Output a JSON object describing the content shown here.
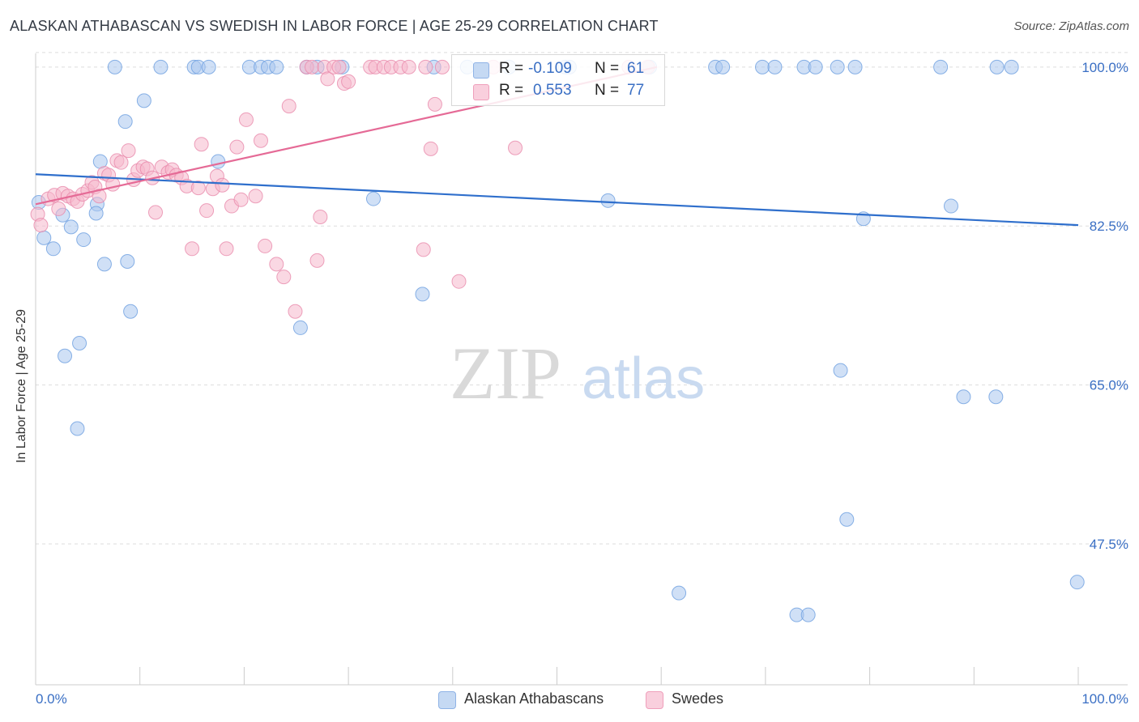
{
  "header": {
    "title": "ALASKAN ATHABASCAN VS SWEDISH IN LABOR FORCE | AGE 25-29 CORRELATION CHART",
    "source": "Source: ZipAtlas.com"
  },
  "watermark": {
    "zip": "ZIP",
    "atlas": "atlas"
  },
  "stats_legend": {
    "rows": [
      {
        "r_label": "R =",
        "r_value": "-0.109",
        "n_label": "N =",
        "n_value": "61",
        "color": "#a9c7ee"
      },
      {
        "r_label": "R =",
        "r_value": "0.553",
        "n_label": "N =",
        "n_value": "77",
        "color": "#f5b8cc"
      }
    ]
  },
  "bottom_legend": [
    {
      "label": "Alaskan Athabascans",
      "color": "#a9c7ee"
    },
    {
      "label": "Swedes",
      "color": "#f5b8cc"
    }
  ],
  "chart_data": {
    "type": "scatter",
    "title": "ALASKAN ATHABASCAN VS SWEDISH IN LABOR FORCE | AGE 25-29 CORRELATION CHART",
    "xlabel": "",
    "ylabel": "In Labor Force | Age 25-29",
    "xlim": [
      0,
      100
    ],
    "ylim": [
      32,
      101.5
    ],
    "x_tick_labels": [
      "0.0%",
      "100.0%"
    ],
    "y_ticks": [
      47.5,
      65.0,
      82.5,
      100.0
    ],
    "y_tick_labels": [
      "47.5%",
      "65.0%",
      "82.5%",
      "100.0%"
    ],
    "grid": "horizontal dashed",
    "legend": "bottom",
    "series": [
      {
        "name": "Alaskan Athabascans",
        "color": "#6d9fe0",
        "fill": "#a9c7ee",
        "trend": {
          "x": [
            0,
            100
          ],
          "y": [
            88.2,
            82.6
          ]
        },
        "points": [
          [
            0.3,
            85.1
          ],
          [
            0.8,
            81.2
          ],
          [
            1.7,
            80.0
          ],
          [
            2.6,
            83.7
          ],
          [
            3.4,
            82.4
          ],
          [
            2.8,
            68.2
          ],
          [
            4.2,
            69.6
          ],
          [
            4.0,
            60.2
          ],
          [
            4.6,
            81.0
          ],
          [
            5.9,
            84.9
          ],
          [
            5.8,
            83.9
          ],
          [
            6.2,
            89.6
          ],
          [
            6.6,
            78.3
          ],
          [
            8.6,
            94.0
          ],
          [
            8.8,
            78.6
          ],
          [
            9.1,
            73.1
          ],
          [
            10.4,
            96.3
          ],
          [
            7.6,
            100.0
          ],
          [
            12.0,
            100.0
          ],
          [
            15.2,
            100.0
          ],
          [
            15.6,
            100.0
          ],
          [
            16.6,
            100.0
          ],
          [
            17.5,
            89.6
          ],
          [
            20.5,
            100.0
          ],
          [
            21.6,
            100.0
          ],
          [
            22.3,
            100.0
          ],
          [
            23.1,
            100.0
          ],
          [
            25.4,
            71.3
          ],
          [
            26.0,
            100.0
          ],
          [
            27.0,
            100.0
          ],
          [
            29.4,
            100.0
          ],
          [
            32.4,
            85.5
          ],
          [
            37.1,
            75.0
          ],
          [
            38.2,
            100.0
          ],
          [
            41.4,
            100.0
          ],
          [
            45.4,
            100.0
          ],
          [
            50.8,
            100.0
          ],
          [
            51.2,
            100.0
          ],
          [
            54.9,
            85.3
          ],
          [
            58.9,
            100.0
          ],
          [
            61.7,
            42.1
          ],
          [
            65.2,
            100.0
          ],
          [
            65.9,
            100.0
          ],
          [
            69.7,
            100.0
          ],
          [
            70.9,
            100.0
          ],
          [
            73.0,
            39.7
          ],
          [
            74.1,
            39.7
          ],
          [
            73.7,
            100.0
          ],
          [
            74.8,
            100.0
          ],
          [
            76.9,
            100.0
          ],
          [
            77.2,
            66.6
          ],
          [
            77.8,
            50.2
          ],
          [
            78.6,
            100.0
          ],
          [
            79.4,
            83.3
          ],
          [
            86.8,
            100.0
          ],
          [
            87.8,
            84.7
          ],
          [
            89.0,
            63.7
          ],
          [
            92.2,
            100.0
          ],
          [
            92.1,
            63.7
          ],
          [
            93.6,
            100.0
          ],
          [
            99.9,
            43.3
          ]
        ]
      },
      {
        "name": "Swedes",
        "color": "#e98aab",
        "fill": "#f5b8cc",
        "trend": {
          "x": [
            0,
            59.6
          ],
          "y": [
            84.9,
            100.0
          ]
        },
        "points": [
          [
            0.2,
            83.8
          ],
          [
            0.5,
            82.6
          ],
          [
            1.2,
            85.5
          ],
          [
            1.8,
            85.9
          ],
          [
            2.2,
            84.4
          ],
          [
            2.6,
            86.1
          ],
          [
            3.1,
            85.8
          ],
          [
            3.6,
            85.5
          ],
          [
            4.0,
            85.2
          ],
          [
            4.5,
            86.0
          ],
          [
            5.0,
            86.4
          ],
          [
            5.4,
            87.3
          ],
          [
            5.7,
            86.8
          ],
          [
            6.1,
            85.8
          ],
          [
            6.6,
            88.3
          ],
          [
            7.0,
            88.1
          ],
          [
            7.4,
            87.1
          ],
          [
            7.8,
            89.7
          ],
          [
            8.2,
            89.5
          ],
          [
            8.9,
            90.8
          ],
          [
            9.4,
            87.6
          ],
          [
            9.8,
            88.6
          ],
          [
            10.3,
            89.0
          ],
          [
            10.7,
            88.8
          ],
          [
            11.2,
            87.8
          ],
          [
            11.5,
            84.0
          ],
          [
            12.1,
            89.0
          ],
          [
            12.7,
            88.4
          ],
          [
            13.1,
            88.7
          ],
          [
            13.5,
            88.1
          ],
          [
            14.0,
            87.8
          ],
          [
            14.5,
            86.9
          ],
          [
            15.0,
            80.0
          ],
          [
            15.6,
            86.7
          ],
          [
            15.9,
            91.5
          ],
          [
            16.4,
            84.2
          ],
          [
            17.0,
            86.6
          ],
          [
            17.4,
            88.0
          ],
          [
            17.9,
            87.0
          ],
          [
            18.3,
            80.0
          ],
          [
            18.8,
            84.7
          ],
          [
            19.3,
            91.2
          ],
          [
            19.7,
            85.4
          ],
          [
            20.2,
            94.2
          ],
          [
            21.1,
            85.8
          ],
          [
            21.6,
            91.9
          ],
          [
            22.0,
            80.3
          ],
          [
            23.1,
            78.3
          ],
          [
            23.8,
            76.9
          ],
          [
            24.3,
            95.7
          ],
          [
            24.9,
            73.1
          ],
          [
            26.0,
            100.0
          ],
          [
            26.5,
            100.0
          ],
          [
            27.0,
            78.7
          ],
          [
            27.3,
            83.5
          ],
          [
            27.7,
            100.0
          ],
          [
            28.0,
            98.7
          ],
          [
            28.6,
            100.0
          ],
          [
            29.1,
            100.0
          ],
          [
            29.6,
            98.2
          ],
          [
            30.0,
            98.4
          ],
          [
            32.1,
            100.0
          ],
          [
            32.6,
            100.0
          ],
          [
            33.4,
            100.0
          ],
          [
            34.1,
            100.0
          ],
          [
            35.0,
            100.0
          ],
          [
            35.8,
            100.0
          ],
          [
            37.4,
            100.0
          ],
          [
            37.9,
            91.0
          ],
          [
            37.2,
            79.9
          ],
          [
            38.3,
            95.9
          ],
          [
            39.0,
            100.0
          ],
          [
            40.6,
            76.4
          ],
          [
            43.9,
            100.0
          ],
          [
            46.0,
            91.1
          ],
          [
            56.9,
            100.0
          ],
          [
            58.7,
            100.0
          ]
        ]
      }
    ]
  }
}
